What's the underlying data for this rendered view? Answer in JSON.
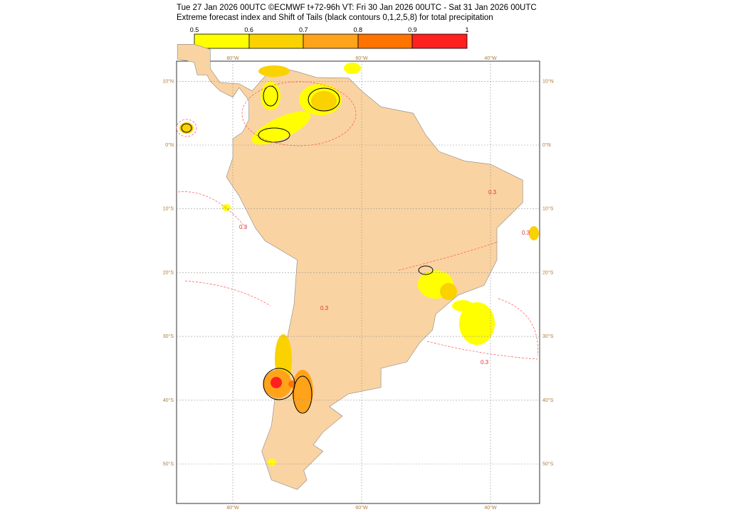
{
  "header": {
    "line1": "Tue 27 Jan 2026 00UTC ©ECMWF t+72-96h  VT: Fri 30 Jan 2026 00UTC - Sat 31 Jan 2026 00UTC",
    "line2": "Extreme forecast index and Shift of Tails (black contours 0,1,2,5,8) for total precipitation"
  },
  "colorbar": {
    "labels": [
      0.5,
      0.6,
      0.7,
      0.8,
      0.9,
      1
    ]
  },
  "map": {
    "lon_labels": [
      "80°W",
      "60°W",
      "40°W"
    ],
    "lat_labels": [
      "10°N",
      "0°N",
      "10°S",
      "20°S",
      "30°S",
      "40°S",
      "50°S"
    ],
    "contour_labels": [
      "0.3",
      "0.3",
      "0.3",
      "0.3",
      "0.3"
    ]
  }
}
